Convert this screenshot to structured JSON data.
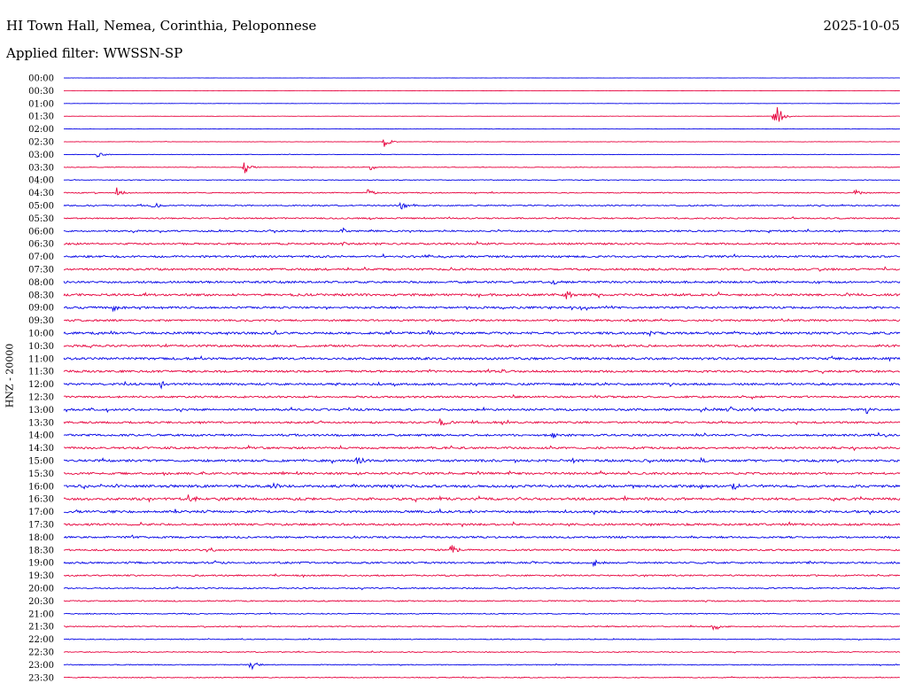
{
  "header": {
    "title": "HI Town Hall, Nemea, Corinthia, Peloponnese",
    "date": "2025-10-05",
    "filter": "Applied filter: WWSSN-SP"
  },
  "chart_data": {
    "type": "line",
    "title": "HI Town Hall, Nemea, Corinthia, Peloponnese",
    "subtitle": "Applied filter: WWSSN-SP",
    "ylabel": "HNZ - 20000",
    "xlabel": "",
    "colors": [
      "#0000e6",
      "#e6003c"
    ],
    "grid": false,
    "row_labels": [
      "00:00",
      "00:30",
      "01:00",
      "01:30",
      "02:00",
      "02:30",
      "03:00",
      "03:30",
      "04:00",
      "04:30",
      "05:00",
      "05:30",
      "06:00",
      "06:30",
      "07:00",
      "07:30",
      "08:00",
      "08:30",
      "09:00",
      "09:30",
      "10:00",
      "10:30",
      "11:00",
      "11:30",
      "12:00",
      "12:30",
      "13:00",
      "13:30",
      "14:00",
      "14:30",
      "15:00",
      "15:30",
      "16:00",
      "16:30",
      "17:00",
      "17:30",
      "18:00",
      "18:30",
      "19:00",
      "19:30",
      "20:00",
      "20:30",
      "21:00",
      "21:30",
      "22:00",
      "22:30",
      "23:00",
      "23:30"
    ],
    "noise_level": [
      0.05,
      0.05,
      0.06,
      0.06,
      0.07,
      0.09,
      0.12,
      0.15,
      0.18,
      0.25,
      0.3,
      0.33,
      0.38,
      0.45,
      0.48,
      0.5,
      0.5,
      0.55,
      0.5,
      0.45,
      0.55,
      0.5,
      0.55,
      0.5,
      0.5,
      0.45,
      0.5,
      0.45,
      0.5,
      0.5,
      0.55,
      0.5,
      0.6,
      0.6,
      0.55,
      0.5,
      0.45,
      0.4,
      0.45,
      0.35,
      0.3,
      0.3,
      0.25,
      0.25,
      0.22,
      0.22,
      0.2,
      0.2
    ],
    "events": [
      {
        "row": 3,
        "minute": 25.5,
        "amplitude": 3.5
      },
      {
        "row": 5,
        "minute": 11.5,
        "amplitude": 1.0
      },
      {
        "row": 6,
        "minute": 1.2,
        "amplitude": 0.6
      },
      {
        "row": 7,
        "minute": 6.5,
        "amplitude": 1.5
      },
      {
        "row": 7,
        "minute": 11.0,
        "amplitude": 0.6
      },
      {
        "row": 9,
        "minute": 1.9,
        "amplitude": 1.0
      },
      {
        "row": 9,
        "minute": 10.9,
        "amplitude": 0.8
      },
      {
        "row": 9,
        "minute": 28.4,
        "amplitude": 0.8
      },
      {
        "row": 10,
        "minute": 3.2,
        "amplitude": 0.8
      },
      {
        "row": 10,
        "minute": 12.1,
        "amplitude": 0.8
      },
      {
        "row": 12,
        "minute": 10.0,
        "amplitude": 0.8
      },
      {
        "row": 13,
        "minute": 10.0,
        "amplitude": 0.6
      },
      {
        "row": 14,
        "minute": 13.0,
        "amplitude": 0.6
      },
      {
        "row": 16,
        "minute": 17.5,
        "amplitude": 0.7
      },
      {
        "row": 17,
        "minute": 18.0,
        "amplitude": 1.0
      },
      {
        "row": 18,
        "minute": 1.8,
        "amplitude": 0.9
      },
      {
        "row": 20,
        "minute": 13.0,
        "amplitude": 1.0
      },
      {
        "row": 24,
        "minute": 3.5,
        "amplitude": 0.6
      },
      {
        "row": 26,
        "minute": 23.8,
        "amplitude": 1.0
      },
      {
        "row": 26,
        "minute": 28.8,
        "amplitude": 0.8
      },
      {
        "row": 27,
        "minute": 13.5,
        "amplitude": 0.9
      },
      {
        "row": 28,
        "minute": 17.5,
        "amplitude": 0.9
      },
      {
        "row": 30,
        "minute": 10.5,
        "amplitude": 1.0
      },
      {
        "row": 30,
        "minute": 22.8,
        "amplitude": 0.8
      },
      {
        "row": 32,
        "minute": 7.5,
        "amplitude": 0.9
      },
      {
        "row": 32,
        "minute": 24.0,
        "amplitude": 0.8
      },
      {
        "row": 33,
        "minute": 4.5,
        "amplitude": 1.3
      },
      {
        "row": 37,
        "minute": 5.3,
        "amplitude": 0.8
      },
      {
        "row": 37,
        "minute": 13.9,
        "amplitude": 1.0
      },
      {
        "row": 38,
        "minute": 19.0,
        "amplitude": 0.8
      },
      {
        "row": 43,
        "minute": 23.3,
        "amplitude": 1.1
      },
      {
        "row": 46,
        "minute": 6.7,
        "amplitude": 1.5
      }
    ]
  }
}
